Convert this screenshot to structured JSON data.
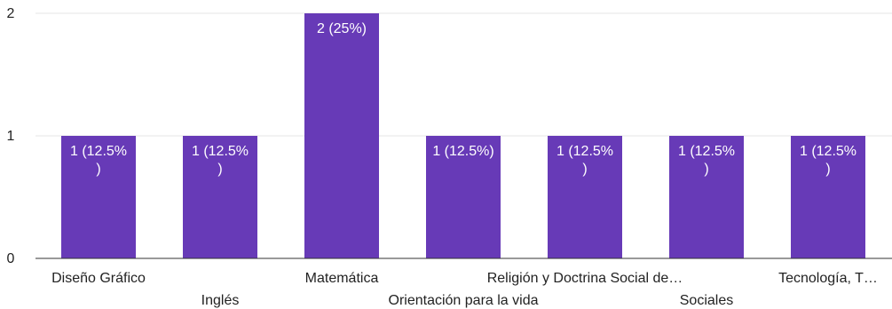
{
  "chart_data": {
    "type": "bar",
    "categories": [
      "Diseño Gráfico",
      "Inglés",
      "Matemática",
      "Orientación para la vida",
      "Religión y Doctrina Social de…",
      "Sociales",
      "Tecnología, T…"
    ],
    "values": [
      1,
      1,
      2,
      1,
      1,
      1,
      1
    ],
    "data_labels": [
      [
        "1 (12.5%",
        ")"
      ],
      [
        "1 (12.5%",
        ")"
      ],
      [
        "2 (25%)"
      ],
      [
        "1 (12.5%)"
      ],
      [
        "1 (12.5%",
        ")"
      ],
      [
        "1 (12.5%",
        ")"
      ],
      [
        "1 (12.5%",
        ")"
      ]
    ],
    "ylim": [
      0,
      2
    ],
    "yticks": [
      0,
      1,
      2
    ],
    "grid": true,
    "legend": "none",
    "bar_color": "#673ab7",
    "title": "",
    "xlabel": "",
    "ylabel": ""
  }
}
